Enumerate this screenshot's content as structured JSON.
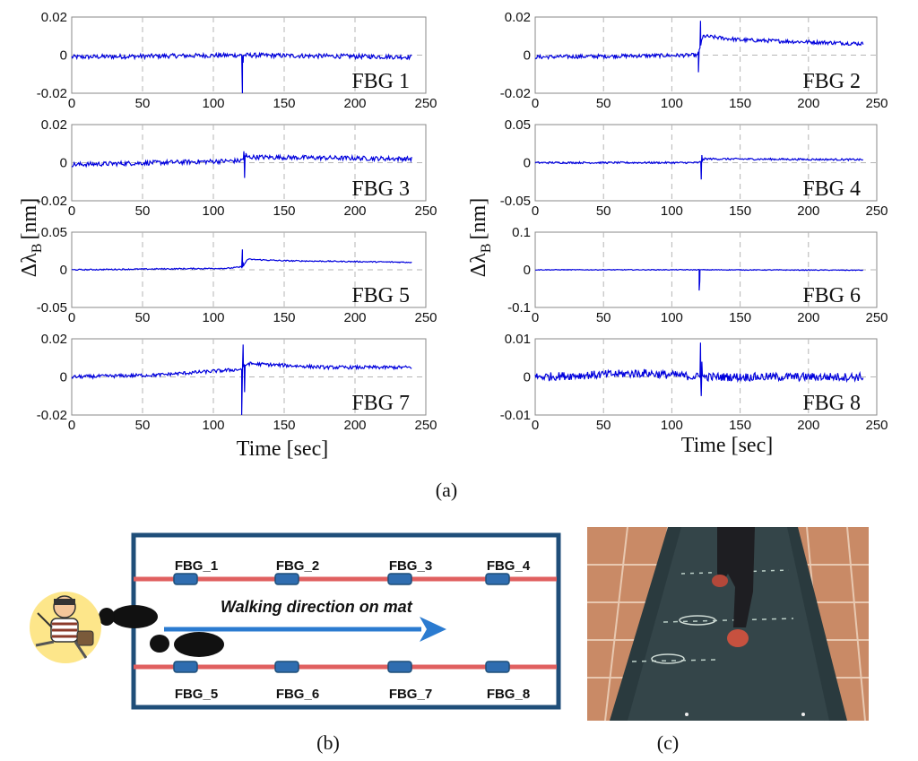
{
  "chart_data": {
    "type": "line",
    "xlabel": "Time [sec]",
    "ylabel_main": "Δλ",
    "ylabel_sub": "B",
    "ylabel_unit": "[nm]",
    "x_ticks": [
      "0",
      "50",
      "100",
      "150",
      "200",
      "250"
    ],
    "xlim": [
      0,
      250
    ],
    "grid": true,
    "series_color": "#0000dd",
    "panels": [
      {
        "label": "FBG 1",
        "ylim": [
          -0.02,
          0.02
        ],
        "y_ticks": [
          "0.02",
          "0",
          "-0.02"
        ],
        "baseline": [
          [
            0,
            -0.001
          ],
          [
            120,
            0.0
          ],
          [
            240,
            -0.001
          ]
        ],
        "noise": 0.0012,
        "spikes": [
          [
            120.5,
            -0.02
          ],
          [
            121,
            -0.004
          ]
        ]
      },
      {
        "label": "FBG 2",
        "ylim": [
          -0.02,
          0.02
        ],
        "y_ticks": [
          "0.02",
          "0",
          "-0.02"
        ],
        "baseline": [
          [
            0,
            -0.001
          ],
          [
            119,
            0.0
          ],
          [
            123,
            0.01
          ],
          [
            150,
            0.008
          ],
          [
            240,
            0.006
          ]
        ],
        "noise": 0.001,
        "spikes": [
          [
            119.5,
            -0.009
          ],
          [
            121,
            0.018
          ]
        ]
      },
      {
        "label": "FBG 3",
        "ylim": [
          -0.02,
          0.02
        ],
        "y_ticks": [
          "0.02",
          "0",
          "-0.02"
        ],
        "baseline": [
          [
            0,
            -0.001
          ],
          [
            119,
            0.001
          ],
          [
            123,
            0.003
          ],
          [
            240,
            0.002
          ]
        ],
        "noise": 0.0012,
        "spikes": [
          [
            121.5,
            0.006
          ],
          [
            122,
            -0.008
          ],
          [
            123,
            0.005
          ]
        ]
      },
      {
        "label": "FBG 4",
        "ylim": [
          -0.05,
          0.05
        ],
        "y_ticks": [
          "0.05",
          "0",
          "-0.05"
        ],
        "baseline": [
          [
            0,
            0.0
          ],
          [
            120,
            0.0
          ],
          [
            124,
            0.005
          ],
          [
            240,
            0.004
          ]
        ],
        "noise": 0.0012,
        "spikes": [
          [
            121.5,
            -0.022
          ],
          [
            122,
            0.01
          ]
        ]
      },
      {
        "label": "FBG 5",
        "ylim": [
          -0.05,
          0.05
        ],
        "y_ticks": [
          "0.05",
          "0",
          "-0.05"
        ],
        "baseline": [
          [
            0,
            0.0
          ],
          [
            110,
            0.002
          ],
          [
            121,
            0.004
          ],
          [
            124,
            0.014
          ],
          [
            150,
            0.012
          ],
          [
            240,
            0.01
          ]
        ],
        "noise": 0.0008,
        "spikes": [
          [
            120.5,
            0.027
          ],
          [
            121,
            0.01
          ]
        ]
      },
      {
        "label": "FBG 6",
        "ylim": [
          -0.1,
          0.1
        ],
        "y_ticks": [
          "0.1",
          "0",
          "-0.1"
        ],
        "baseline": [
          [
            0,
            0.0
          ],
          [
            120,
            0.0
          ],
          [
            240,
            -0.001
          ]
        ],
        "noise": 0.001,
        "spikes": [
          [
            120,
            -0.055
          ],
          [
            120.5,
            -0.03
          ]
        ]
      },
      {
        "label": "FBG 7",
        "ylim": [
          -0.02,
          0.02
        ],
        "y_ticks": [
          "0.02",
          "0",
          "-0.02"
        ],
        "baseline": [
          [
            0,
            0.0
          ],
          [
            60,
            0.001
          ],
          [
            120,
            0.004
          ],
          [
            124,
            0.007
          ],
          [
            180,
            0.005
          ],
          [
            240,
            0.005
          ]
        ],
        "noise": 0.0009,
        "spikes": [
          [
            120,
            -0.02
          ],
          [
            121,
            0.017
          ],
          [
            122,
            -0.008
          ]
        ]
      },
      {
        "label": "FBG 8",
        "ylim": [
          -0.01,
          0.01
        ],
        "y_ticks": [
          "0.01",
          "0",
          "-0.01"
        ],
        "baseline": [
          [
            0,
            0.0
          ],
          [
            80,
            0.001
          ],
          [
            120,
            0.0
          ],
          [
            240,
            0.0
          ]
        ],
        "noise": 0.0011,
        "spikes": [
          [
            121,
            0.009
          ],
          [
            121.5,
            -0.005
          ],
          [
            122,
            0.004
          ]
        ]
      }
    ]
  },
  "captions": {
    "a": "(a)",
    "b": "(b)",
    "c": "(c)"
  },
  "mat": {
    "top_sensors": [
      "FBG_1",
      "FBG_2",
      "FBG_3",
      "FBG_4"
    ],
    "bottom_sensors": [
      "FBG_5",
      "FBG_6",
      "FBG_7",
      "FBG_8"
    ],
    "direction_text": "Walking direction on mat",
    "frame_color": "#1f4e79",
    "fiber_color": "#e06060",
    "arrow_color": "#2b7bd0"
  },
  "photo": {
    "description_icon": "walking-person-photo-icon"
  }
}
